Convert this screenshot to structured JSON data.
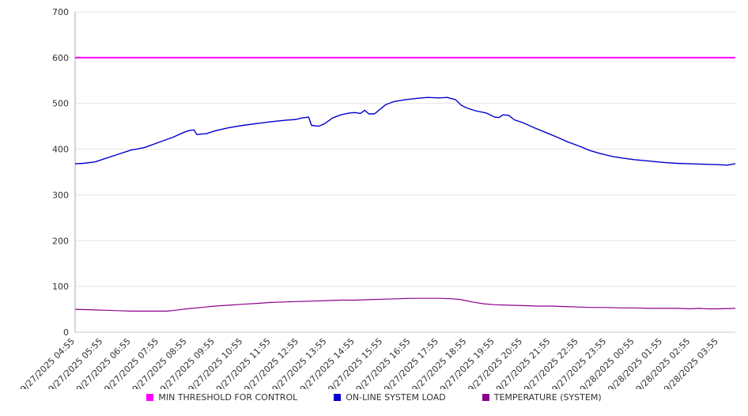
{
  "chart_data": {
    "type": "line",
    "title": "",
    "grid": "horizontal",
    "legend_position": "bottom",
    "x_domain": [
      0,
      23.6
    ],
    "x_axis": {
      "label_rotation": -45,
      "labels": [
        "9/27/2025 04:55",
        "9/27/2025 05:55",
        "9/27/2025 06:55",
        "9/27/2025 07:55",
        "9/27/2025 08:55",
        "9/27/2025 09:55",
        "9/27/2025 10:55",
        "9/27/2025 11:55",
        "9/27/2025 12:55",
        "9/27/2025 13:55",
        "9/27/2025 14:55",
        "9/27/2025 15:55",
        "9/27/2025 16:55",
        "9/27/2025 17:55",
        "9/27/2025 18:55",
        "9/27/2025 19:55",
        "9/27/2025 20:55",
        "9/27/2025 21:55",
        "9/27/2025 22:55",
        "9/27/2025 23:55",
        "9/28/2025 00:55",
        "9/28/2025 01:55",
        "9/28/2025 02:55",
        "9/28/2025 03:55"
      ]
    },
    "y_axis": {
      "min": 0,
      "max": 700,
      "tick_step": 100,
      "ticks": [
        0,
        100,
        200,
        300,
        400,
        500,
        600,
        700
      ]
    },
    "series": [
      {
        "name": "MIN THRESHOLD FOR CONTROL",
        "color": "#ff00ff",
        "stroke_width": 2,
        "points": [
          [
            0,
            600
          ],
          [
            23.6,
            600
          ]
        ]
      },
      {
        "name": "ON-LINE SYSTEM LOAD",
        "color": "#0000cc",
        "stroke_width": 1.4,
        "points": [
          [
            0,
            368
          ],
          [
            0.3,
            369
          ],
          [
            0.7,
            372
          ],
          [
            1,
            378
          ],
          [
            1.5,
            388
          ],
          [
            2,
            398
          ],
          [
            2.2,
            400
          ],
          [
            2.5,
            404
          ],
          [
            3,
            415
          ],
          [
            3.5,
            426
          ],
          [
            3.9,
            437
          ],
          [
            4.1,
            441
          ],
          [
            4.25,
            442
          ],
          [
            4.35,
            432
          ],
          [
            4.7,
            434
          ],
          [
            5,
            440
          ],
          [
            5.5,
            447
          ],
          [
            6,
            452
          ],
          [
            6.5,
            456
          ],
          [
            7,
            460
          ],
          [
            7.5,
            463
          ],
          [
            7.9,
            465
          ],
          [
            8.1,
            468
          ],
          [
            8.35,
            470
          ],
          [
            8.45,
            452
          ],
          [
            8.7,
            450
          ],
          [
            8.9,
            455
          ],
          [
            9.2,
            468
          ],
          [
            9.5,
            475
          ],
          [
            9.8,
            479
          ],
          [
            10,
            480
          ],
          [
            10.2,
            478
          ],
          [
            10.35,
            485
          ],
          [
            10.5,
            477
          ],
          [
            10.7,
            477
          ],
          [
            10.9,
            487
          ],
          [
            11.1,
            497
          ],
          [
            11.4,
            504
          ],
          [
            11.8,
            508
          ],
          [
            12.2,
            511
          ],
          [
            12.6,
            513
          ],
          [
            13,
            512
          ],
          [
            13.3,
            513
          ],
          [
            13.6,
            508
          ],
          [
            13.8,
            496
          ],
          [
            14,
            490
          ],
          [
            14.3,
            484
          ],
          [
            14.7,
            479
          ],
          [
            15,
            470
          ],
          [
            15.15,
            469
          ],
          [
            15.3,
            475
          ],
          [
            15.5,
            474
          ],
          [
            15.7,
            464
          ],
          [
            16,
            458
          ],
          [
            16.4,
            447
          ],
          [
            16.8,
            437
          ],
          [
            17.2,
            427
          ],
          [
            17.6,
            416
          ],
          [
            18,
            407
          ],
          [
            18.4,
            397
          ],
          [
            18.8,
            390
          ],
          [
            19.2,
            384
          ],
          [
            19.6,
            380
          ],
          [
            20,
            377
          ],
          [
            20.5,
            374
          ],
          [
            21,
            371
          ],
          [
            21.5,
            369
          ],
          [
            22,
            368
          ],
          [
            22.5,
            367
          ],
          [
            23,
            366
          ],
          [
            23.3,
            365
          ],
          [
            23.6,
            368
          ]
        ]
      },
      {
        "name": "TEMPERATURE (SYSTEM)",
        "color": "#8b008b",
        "stroke_width": 1.2,
        "points": [
          [
            0,
            50
          ],
          [
            0.5,
            49
          ],
          [
            1,
            48
          ],
          [
            1.5,
            47
          ],
          [
            2,
            46
          ],
          [
            2.5,
            46
          ],
          [
            3,
            46
          ],
          [
            3.3,
            46
          ],
          [
            3.6,
            48
          ],
          [
            4,
            51
          ],
          [
            4.5,
            54
          ],
          [
            5,
            57
          ],
          [
            5.5,
            59
          ],
          [
            6,
            61
          ],
          [
            6.5,
            63
          ],
          [
            7,
            65
          ],
          [
            7.5,
            66
          ],
          [
            8,
            67
          ],
          [
            8.5,
            68
          ],
          [
            9,
            69
          ],
          [
            9.5,
            70
          ],
          [
            10,
            70
          ],
          [
            10.5,
            71
          ],
          [
            11,
            72
          ],
          [
            11.5,
            73
          ],
          [
            12,
            74
          ],
          [
            12.5,
            74
          ],
          [
            13,
            74
          ],
          [
            13.5,
            73
          ],
          [
            13.8,
            71
          ],
          [
            14.2,
            66
          ],
          [
            14.6,
            62
          ],
          [
            15,
            60
          ],
          [
            15.5,
            59
          ],
          [
            16,
            58
          ],
          [
            16.5,
            57
          ],
          [
            17,
            57
          ],
          [
            17.5,
            56
          ],
          [
            18,
            55
          ],
          [
            18.5,
            54
          ],
          [
            19,
            54
          ],
          [
            19.5,
            53
          ],
          [
            20,
            53
          ],
          [
            20.5,
            52
          ],
          [
            21,
            52
          ],
          [
            21.5,
            52
          ],
          [
            22,
            51
          ],
          [
            22.3,
            52
          ],
          [
            22.6,
            51
          ],
          [
            23,
            51
          ],
          [
            23.6,
            52
          ]
        ]
      }
    ],
    "colors": {
      "grid_line": "#e4e4e4",
      "axis_line": "#aaaaaa",
      "zero_line": "#c8c8c8",
      "tick_text": "#333333"
    }
  }
}
